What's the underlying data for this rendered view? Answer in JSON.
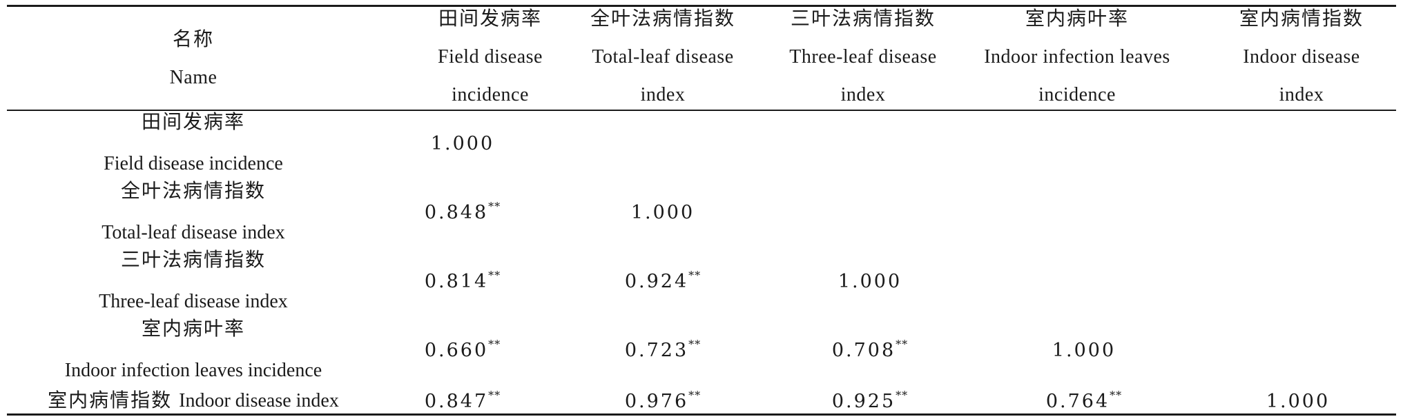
{
  "header": {
    "name": {
      "zh": "名称",
      "en": "Name"
    },
    "columns": [
      {
        "zh": "田间发病率",
        "en_line1": "Field disease",
        "en_line2": "incidence"
      },
      {
        "zh": "全叶法病情指数",
        "en_line1": "Total-leaf disease",
        "en_line2": "index"
      },
      {
        "zh": "三叶法病情指数",
        "en_line1": "Three-leaf disease",
        "en_line2": "index"
      },
      {
        "zh": "室内病叶率",
        "en_line1": "Indoor infection leaves",
        "en_line2": "incidence"
      },
      {
        "zh": "室内病情指数",
        "en_line1": "Indoor disease",
        "en_line2": "index"
      }
    ]
  },
  "rows": [
    {
      "zh": "田间发病率",
      "en": "Field disease incidence",
      "values": [
        {
          "v": "1.000",
          "sig": ""
        }
      ]
    },
    {
      "zh": "全叶法病情指数",
      "en": "Total-leaf disease index",
      "values": [
        {
          "v": "0.848",
          "sig": "**"
        },
        {
          "v": "1.000",
          "sig": ""
        }
      ]
    },
    {
      "zh": "三叶法病情指数",
      "en": "Three-leaf disease index",
      "values": [
        {
          "v": "0.814",
          "sig": "**"
        },
        {
          "v": "0.924",
          "sig": "**"
        },
        {
          "v": "1.000",
          "sig": ""
        }
      ]
    },
    {
      "zh": "室内病叶率",
      "en": "Indoor infection leaves incidence",
      "values": [
        {
          "v": "0.660",
          "sig": "**"
        },
        {
          "v": "0.723",
          "sig": "**"
        },
        {
          "v": "0.708",
          "sig": "**"
        },
        {
          "v": "1.000",
          "sig": ""
        }
      ]
    },
    {
      "zh": "室内病情指数",
      "en": "Indoor disease index",
      "values": [
        {
          "v": "0.847",
          "sig": "**"
        },
        {
          "v": "0.976",
          "sig": "**"
        },
        {
          "v": "0.925",
          "sig": "**"
        },
        {
          "v": "0.764",
          "sig": "**"
        },
        {
          "v": "1.000",
          "sig": ""
        }
      ]
    }
  ]
}
